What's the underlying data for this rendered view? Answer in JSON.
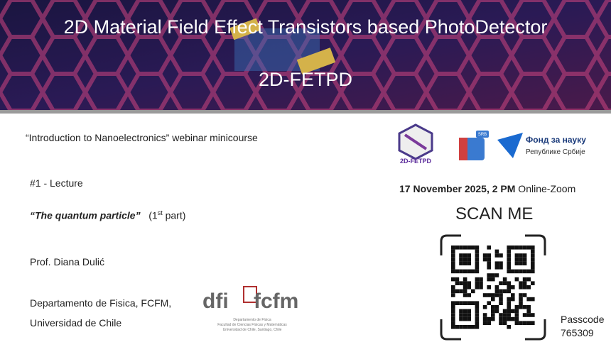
{
  "header": {
    "title": "2D Material Field Effect Transistors based PhotoDetector",
    "subtitle": "2D-FETPD"
  },
  "course": "“Introduction to Nanoelectronics” webinar minicourse",
  "lecture": {
    "number": "#1 - Lecture",
    "title": "“The quantum particle”",
    "part_open": "(1",
    "part_sup": "st",
    "part_close": " part)"
  },
  "speaker": "Prof. Diana Dulić",
  "affiliation": [
    "Departamento de Fisica, FCFM,",
    "Universidad de Chile"
  ],
  "logos": {
    "project": "2D-FETPD",
    "badge": "SRB",
    "fund_line1": "Фонд за науку",
    "fund_line2": "Републике Србије",
    "dfi": "dfi",
    "fcfm": "fcfm",
    "uchile": [
      "Departamento de Física",
      "Facultad de Ciencias Físicas y Matemáticas",
      "Universidad de Chile, Santiago, Chile"
    ]
  },
  "event": {
    "date": "17 November 2025, 2 PM",
    "platform": " Online-Zoom"
  },
  "qr": {
    "label": "SCAN ME",
    "passcode_label": "Passcode",
    "passcode": "765309"
  }
}
